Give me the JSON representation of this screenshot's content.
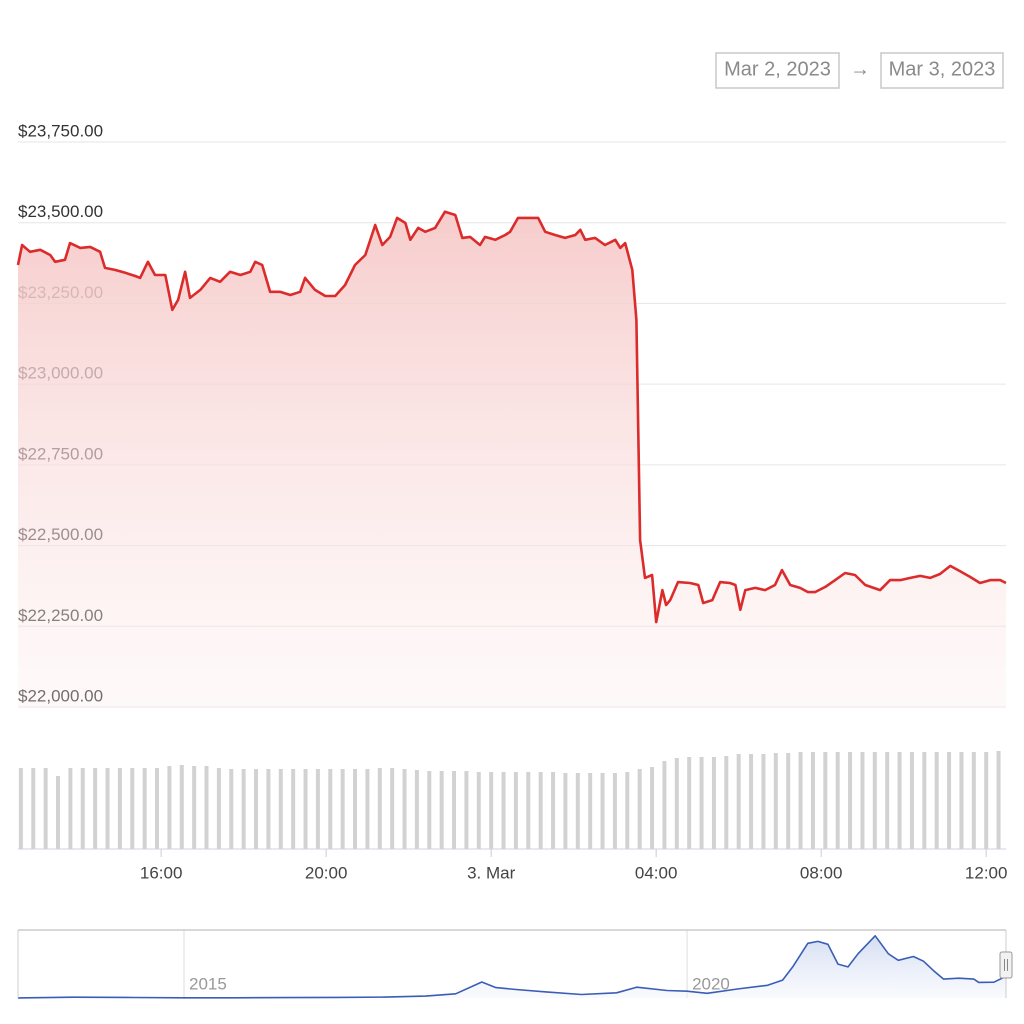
{
  "date_range": {
    "from": "Mar 2, 2023",
    "separator": "→",
    "to": "Mar 3, 2023"
  },
  "chart_data": [
    {
      "type": "line",
      "name": "price",
      "color": "#dc2b2b",
      "grid": true,
      "xlim": [
        12.53,
        36.48
      ],
      "xticks": [
        {
          "value": 16,
          "label": "16:00"
        },
        {
          "value": 20,
          "label": "20:00"
        },
        {
          "value": 24,
          "label": "3. Mar"
        },
        {
          "value": 28,
          "label": "04:00"
        },
        {
          "value": 32,
          "label": "08:00"
        },
        {
          "value": 36,
          "label": "12:00"
        }
      ],
      "ylim": [
        22000,
        23750
      ],
      "yticks": [
        {
          "value": 22000,
          "label": "$22,000.00"
        },
        {
          "value": 22250,
          "label": "$22,250.00"
        },
        {
          "value": 22500,
          "label": "$22,500.00"
        },
        {
          "value": 22750,
          "label": "$22,750.00"
        },
        {
          "value": 23000,
          "label": "$23,000.00"
        },
        {
          "value": 23250,
          "label": "$23,250.00"
        },
        {
          "value": 23500,
          "label": "$23,500.00"
        },
        {
          "value": 23750,
          "label": "$23,750.00"
        }
      ],
      "x": [
        12.53,
        12.63,
        12.82,
        13.07,
        13.31,
        13.43,
        13.67,
        13.79,
        14.04,
        14.28,
        14.52,
        14.64,
        14.88,
        15.13,
        15.37,
        15.49,
        15.68,
        15.85,
        16.1,
        16.27,
        16.41,
        16.58,
        16.7,
        16.95,
        17.19,
        17.43,
        17.67,
        17.92,
        18.16,
        18.28,
        18.45,
        18.64,
        18.88,
        19.13,
        19.37,
        19.49,
        19.73,
        19.98,
        20.22,
        20.46,
        20.7,
        20.95,
        21.19,
        21.36,
        21.55,
        21.72,
        21.92,
        22.04,
        22.23,
        22.4,
        22.64,
        22.88,
        23.13,
        23.3,
        23.49,
        23.73,
        23.85,
        24.1,
        24.34,
        24.46,
        24.65,
        24.9,
        25.14,
        25.31,
        25.55,
        25.79,
        26.04,
        26.16,
        26.28,
        26.52,
        26.76,
        27.01,
        27.13,
        27.25,
        27.42,
        27.52,
        27.61,
        27.73,
        27.9,
        28.0,
        28.15,
        28.24,
        28.34,
        28.53,
        28.82,
        29.02,
        29.14,
        29.36,
        29.55,
        29.79,
        29.92,
        30.04,
        30.16,
        30.4,
        30.64,
        30.88,
        31.05,
        31.25,
        31.49,
        31.68,
        31.85,
        32.1,
        32.34,
        32.58,
        32.82,
        33.07,
        33.43,
        33.67,
        33.92,
        34.16,
        34.4,
        34.64,
        34.88,
        35.13,
        35.32,
        35.61,
        35.85,
        36.1,
        36.34,
        36.48
      ],
      "values": [
        23369,
        23431,
        23410,
        23416,
        23400,
        23379,
        23385,
        23437,
        23422,
        23425,
        23410,
        23360,
        23354,
        23345,
        23335,
        23329,
        23379,
        23338,
        23338,
        23230,
        23261,
        23348,
        23267,
        23292,
        23329,
        23317,
        23348,
        23338,
        23348,
        23379,
        23369,
        23286,
        23286,
        23276,
        23286,
        23329,
        23292,
        23273,
        23273,
        23307,
        23369,
        23400,
        23493,
        23431,
        23456,
        23515,
        23499,
        23447,
        23484,
        23472,
        23484,
        23534,
        23524,
        23453,
        23456,
        23431,
        23456,
        23447,
        23462,
        23472,
        23515,
        23515,
        23515,
        23472,
        23462,
        23453,
        23462,
        23478,
        23447,
        23453,
        23431,
        23447,
        23422,
        23437,
        23354,
        23199,
        22517,
        22400,
        22409,
        22263,
        22362,
        22316,
        22331,
        22387,
        22384,
        22378,
        22322,
        22331,
        22387,
        22384,
        22378,
        22301,
        22362,
        22369,
        22362,
        22378,
        22424,
        22378,
        22369,
        22356,
        22356,
        22372,
        22393,
        22415,
        22409,
        22378,
        22362,
        22393,
        22393,
        22400,
        22406,
        22400,
        22412,
        22437,
        22424,
        22403,
        22384,
        22393,
        22393,
        22384
      ]
    },
    {
      "type": "bar",
      "name": "volume",
      "color": "#d2d2d2",
      "xlim": [
        12.53,
        36.48
      ],
      "ylim": [
        0,
        100
      ],
      "x": [
        12.6,
        12.9,
        13.2,
        13.5,
        13.8,
        14.1,
        14.4,
        14.7,
        15.0,
        15.3,
        15.6,
        15.9,
        16.2,
        16.5,
        16.8,
        17.1,
        17.4,
        17.7,
        18.0,
        18.3,
        18.6,
        18.9,
        19.2,
        19.5,
        19.8,
        20.1,
        20.4,
        20.7,
        21.0,
        21.3,
        21.6,
        21.9,
        22.2,
        22.5,
        22.8,
        23.1,
        23.4,
        23.7,
        24.0,
        24.3,
        24.6,
        24.9,
        25.2,
        25.5,
        25.8,
        26.1,
        26.4,
        26.7,
        27.0,
        27.3,
        27.6,
        27.9,
        28.2,
        28.5,
        28.8,
        29.1,
        29.4,
        29.7,
        30.0,
        30.3,
        30.6,
        30.9,
        31.2,
        31.5,
        31.8,
        32.1,
        32.4,
        32.7,
        33.0,
        33.3,
        33.6,
        33.9,
        34.2,
        34.5,
        34.8,
        35.1,
        35.4,
        35.7,
        36.0,
        36.3
      ],
      "values": [
        81,
        81,
        81,
        73,
        81,
        81,
        81,
        81,
        81,
        81,
        81,
        81,
        83,
        84,
        83,
        83,
        81,
        80,
        80,
        80,
        80,
        80,
        80,
        80,
        80,
        80,
        80,
        80,
        80,
        81,
        81,
        80,
        79,
        78,
        78,
        78,
        78,
        77,
        77,
        77,
        77,
        77,
        77,
        77,
        76,
        76,
        76,
        76,
        76,
        77,
        80,
        82,
        88,
        91,
        92,
        92,
        92,
        93,
        95,
        95,
        95,
        96,
        96,
        97,
        97,
        97,
        97,
        97,
        97,
        97,
        97,
        97,
        97,
        97,
        97,
        97,
        97,
        97,
        97,
        98
      ]
    },
    {
      "type": "line",
      "name": "navigator",
      "color": "#3a5db5",
      "xlim": [
        2013.35,
        2023.17
      ],
      "xticks": [
        2015,
        2020
      ],
      "ylim": [
        0,
        70000
      ],
      "x": [
        2013.35,
        2013.9,
        2014.5,
        2015,
        2015.5,
        2016,
        2016.5,
        2017,
        2017.4,
        2017.7,
        2017.96,
        2018.1,
        2018.3,
        2018.6,
        2018.95,
        2019.3,
        2019.5,
        2019.8,
        2020.0,
        2020.2,
        2020.5,
        2020.8,
        2020.95,
        2021.05,
        2021.2,
        2021.3,
        2021.4,
        2021.5,
        2021.6,
        2021.7,
        2021.87,
        2022.0,
        2022.1,
        2022.25,
        2022.35,
        2022.45,
        2022.55,
        2022.7,
        2022.85,
        2022.9,
        2023.05,
        2023.17
      ],
      "values": [
        100,
        800,
        500,
        250,
        250,
        430,
        650,
        1000,
        2000,
        4500,
        17000,
        11000,
        9000,
        6500,
        3700,
        5500,
        11500,
        8000,
        7200,
        5000,
        9500,
        13500,
        19000,
        33000,
        58000,
        60000,
        57000,
        36000,
        33000,
        47000,
        66000,
        47000,
        40000,
        44000,
        39000,
        29000,
        20000,
        21000,
        20000,
        16500,
        16800,
        23000
      ]
    }
  ]
}
